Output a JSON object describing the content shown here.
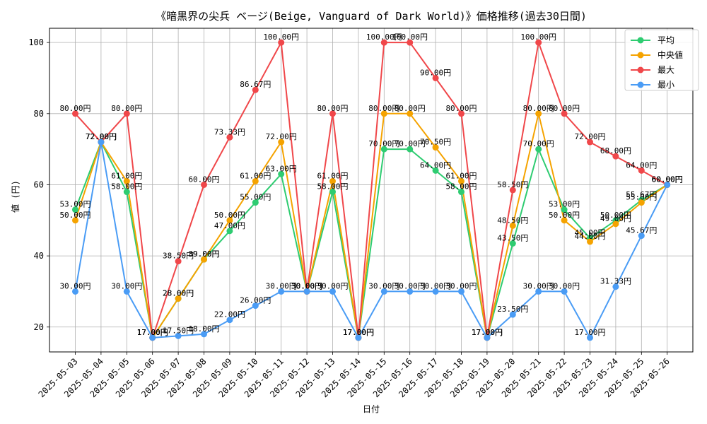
{
  "chart_data": {
    "type": "line",
    "title": "《暗黒界の尖兵 ベージ(Beige, Vanguard of Dark World)》価格推移(過去30日間)",
    "xlabel": "日付",
    "ylabel": "値 (円)",
    "ylim": [
      13,
      104
    ],
    "yticks": [
      20,
      40,
      60,
      80,
      100
    ],
    "grid": true,
    "legend_position": "top-right",
    "value_suffix": "円",
    "categories": [
      "2025-05-03",
      "2025-05-04",
      "2025-05-05",
      "2025-05-06",
      "2025-05-07",
      "2025-05-08",
      "2025-05-09",
      "2025-05-10",
      "2025-05-11",
      "2025-05-12",
      "2025-05-13",
      "2025-05-14",
      "2025-05-15",
      "2025-05-16",
      "2025-05-17",
      "2025-05-18",
      "2025-05-19",
      "2025-05-20",
      "2025-05-21",
      "2025-05-22",
      "2025-05-23",
      "2025-05-24",
      "2025-05-25",
      "2025-05-26"
    ],
    "series": [
      {
        "name": "平均",
        "color": "#2ecc71",
        "values": [
          53.0,
          72.0,
          58.0,
          17.0,
          28.0,
          39.0,
          47.0,
          55.0,
          63.0,
          30.0,
          58.0,
          17.0,
          70.0,
          70.0,
          64.0,
          58.0,
          17.0,
          43.5,
          70.0,
          53.0,
          45.0,
          50.0,
          55.67,
          60.0
        ]
      },
      {
        "name": "中央値",
        "color": "#f5a300",
        "values": [
          50.0,
          72.0,
          61.0,
          17.0,
          28.0,
          39.0,
          50.0,
          61.0,
          72.0,
          30.0,
          61.0,
          17.0,
          80.0,
          80.0,
          70.5,
          61.0,
          17.0,
          48.5,
          80.0,
          50.0,
          44.0,
          49.0,
          55.0,
          60.0
        ]
      },
      {
        "name": "最大",
        "color": "#f0474a",
        "values": [
          80.0,
          72.0,
          80.0,
          17.0,
          38.5,
          60.0,
          73.33,
          86.67,
          100.0,
          30.0,
          80.0,
          17.0,
          100.0,
          100.0,
          90.0,
          80.0,
          17.0,
          58.5,
          100.0,
          80.0,
          72.0,
          68.0,
          64.0,
          60.0
        ]
      },
      {
        "name": "最小",
        "color": "#4a9cf5",
        "values": [
          30.0,
          72.0,
          30.0,
          17.0,
          17.5,
          18.0,
          22.0,
          26.0,
          30.0,
          30.0,
          30.0,
          17.0,
          30.0,
          30.0,
          30.0,
          30.0,
          17.0,
          23.5,
          30.0,
          30.0,
          17.0,
          31.33,
          45.67,
          60.0
        ]
      }
    ]
  }
}
